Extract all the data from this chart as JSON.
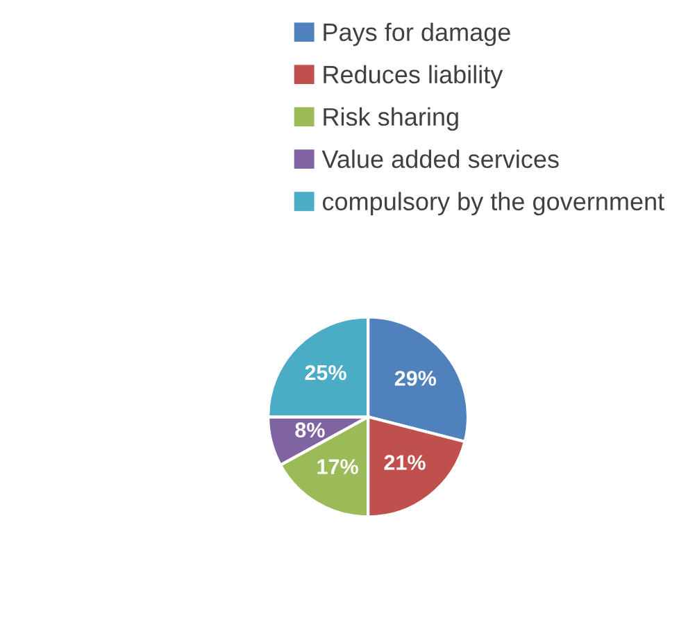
{
  "chart_data": {
    "type": "pie",
    "categories": [
      "Pays for damage",
      "Reduces liability",
      "Risk sharing",
      "Value added services",
      "compulsory by the government"
    ],
    "values": [
      29,
      21,
      17,
      8,
      25
    ],
    "colors": [
      "#4f81bd",
      "#c0504d",
      "#9bbb59",
      "#8064a2",
      "#4bacc6"
    ],
    "value_labels": [
      "29%",
      "21%",
      "17%",
      "8%",
      "25%"
    ],
    "legend": "top"
  }
}
